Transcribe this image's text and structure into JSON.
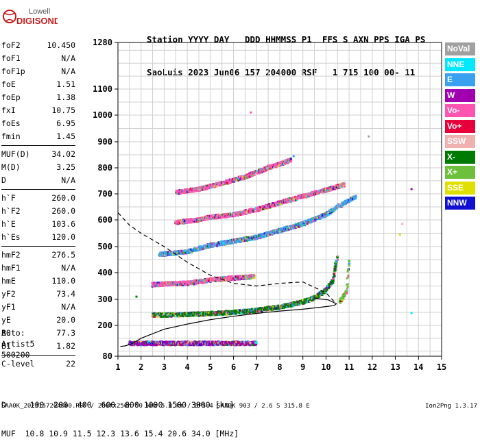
{
  "logo": {
    "line1": "Lowell",
    "line2": "DIGISONDE"
  },
  "header": {
    "line1": "Station YYYY DAY   DDD HHMMSS P1  FFS S AXN PPS IGA PS",
    "line2": "SaoLuis 2023 Jun06 157 204000 RSF   1 715 100 00- 11"
  },
  "params": {
    "group1": [
      {
        "k": "foF2",
        "v": "10.450"
      },
      {
        "k": "foF1",
        "v": "N/A"
      },
      {
        "k": "foF1p",
        "v": "N/A"
      },
      {
        "k": "foE",
        "v": "1.51"
      },
      {
        "k": "foEp",
        "v": "1.38"
      },
      {
        "k": "fxI",
        "v": "10.75"
      },
      {
        "k": "foEs",
        "v": "6.95"
      },
      {
        "k": "fmin",
        "v": "1.45"
      }
    ],
    "group2": [
      {
        "k": "MUF(D)",
        "v": "34.02"
      },
      {
        "k": "M(D)",
        "v": "3.25"
      },
      {
        "k": "D",
        "v": "N/A"
      }
    ],
    "group3": [
      {
        "k": "h`F",
        "v": "260.0"
      },
      {
        "k": "h`F2",
        "v": "260.0"
      },
      {
        "k": "h`E",
        "v": "103.6"
      },
      {
        "k": "h`Es",
        "v": "120.0"
      }
    ],
    "group4": [
      {
        "k": "hmF2",
        "v": "276.5"
      },
      {
        "k": "hmF1",
        "v": "N/A"
      },
      {
        "k": "hmE",
        "v": "110.0"
      },
      {
        "k": "yF2",
        "v": "73.4"
      },
      {
        "k": "yF1",
        "v": "N/A"
      },
      {
        "k": "yE",
        "v": "20.0"
      },
      {
        "k": "B0",
        "v": "77.3"
      },
      {
        "k": "B1",
        "v": "1.82"
      }
    ],
    "group5": [
      {
        "k": "C-level",
        "v": "22"
      }
    ]
  },
  "auto": {
    "line1": "Auto:",
    "line2": "Artist5",
    "line3": "500200"
  },
  "legend": [
    {
      "label": "NoVal",
      "color": "#a0a0a0"
    },
    {
      "label": "NNE",
      "color": "#00e8ff"
    },
    {
      "label": "E",
      "color": "#3aa0f0"
    },
    {
      "label": "W",
      "color": "#a000b0"
    },
    {
      "label": "Vo-",
      "color": "#ff55b0"
    },
    {
      "label": "Vo+",
      "color": "#e8003a"
    },
    {
      "label": "SSW",
      "color": "#f0b0b0"
    },
    {
      "label": "X-",
      "color": "#007a00"
    },
    {
      "label": "X+",
      "color": "#6cc03c"
    },
    {
      "label": "SSE",
      "color": "#e0e000"
    },
    {
      "label": "NNW",
      "color": "#1010d0"
    }
  ],
  "bottom": {
    "line1": "D     100  200  400  600  800 1000 1500 3000 [km]",
    "line2": "MUF  10.8 10.9 11.5 12.3 13.6 15.4 20.6 34.0 [MHz]"
  },
  "footer": "SAA0K_2023157204000.RSF / 280fx256h 50 kHz 5.0 km / DPS-4 SAA0K 903 / 2.6 S 315.8 E",
  "version": "Ion2Png 1.3.17",
  "chart_data": {
    "type": "scatter",
    "x_ticks": [
      1,
      2,
      3,
      4,
      5,
      6,
      7,
      8,
      9,
      10,
      11,
      12,
      13,
      14,
      15
    ],
    "y_ticks": [
      80,
      200,
      300,
      400,
      500,
      600,
      700,
      800,
      900,
      1000,
      1100,
      1280
    ],
    "xlim": [
      1,
      15
    ],
    "ylim": [
      80,
      1280
    ],
    "y_scale": "piecewise-linear",
    "grid": true,
    "traces": [
      {
        "name": "Es-trace",
        "color": "#a000b0",
        "x": [
          1.5,
          7.0
        ],
        "y": [
          130,
          130
        ]
      },
      {
        "name": "F-trace",
        "color": "#007a00",
        "points": [
          [
            2.5,
            240
          ],
          [
            3,
            240
          ],
          [
            4,
            242
          ],
          [
            5,
            245
          ],
          [
            6,
            250
          ],
          [
            7,
            258
          ],
          [
            8,
            270
          ],
          [
            8.5,
            280
          ],
          [
            9,
            290
          ],
          [
            9.5,
            305
          ],
          [
            10,
            335
          ],
          [
            10.3,
            370
          ],
          [
            10.4,
            420
          ],
          [
            10.5,
            460
          ]
        ]
      },
      {
        "name": "F-trace-X",
        "color": "#6cc03c",
        "points": [
          [
            10.6,
            290
          ],
          [
            10.9,
            330
          ],
          [
            10.95,
            400
          ],
          [
            11.0,
            450
          ]
        ]
      },
      {
        "name": "Echo-2E",
        "color": "#ff55b0",
        "points": [
          [
            2.5,
            355
          ],
          [
            3,
            358
          ],
          [
            4,
            360
          ],
          [
            5,
            372
          ],
          [
            6,
            380
          ],
          [
            6.9,
            385
          ]
        ]
      },
      {
        "name": "Echo-2F",
        "color": "#3aa0f0",
        "points": [
          [
            2.8,
            470
          ],
          [
            4,
            480
          ],
          [
            5,
            505
          ],
          [
            6,
            520
          ],
          [
            7,
            535
          ],
          [
            8,
            560
          ],
          [
            9,
            585
          ],
          [
            10,
            620
          ],
          [
            10.5,
            650
          ],
          [
            11.3,
            690
          ]
        ]
      },
      {
        "name": "Echo-3F",
        "color": "#ff55b0",
        "points": [
          [
            3.5,
            590
          ],
          [
            4.5,
            600
          ],
          [
            5,
            610
          ],
          [
            6,
            620
          ],
          [
            7,
            640
          ],
          [
            8,
            665
          ],
          [
            9,
            690
          ],
          [
            10,
            715
          ],
          [
            10.8,
            735
          ]
        ]
      },
      {
        "name": "Echo-4F",
        "color": "#ff55b0",
        "points": [
          [
            3.5,
            705
          ],
          [
            4.5,
            718
          ],
          [
            5.5,
            740
          ],
          [
            6.5,
            765
          ],
          [
            7.5,
            800
          ],
          [
            8.5,
            830
          ]
        ]
      }
    ],
    "profile_solid": [
      [
        1.1,
        118
      ],
      [
        1.3,
        120
      ],
      [
        1.6,
        128
      ],
      [
        2,
        150
      ],
      [
        3,
        185
      ],
      [
        4,
        205
      ],
      [
        5,
        222
      ],
      [
        6,
        235
      ],
      [
        7,
        246
      ],
      [
        8,
        255
      ],
      [
        9,
        262
      ],
      [
        9.8,
        270
      ],
      [
        10.35,
        276
      ],
      [
        10.45,
        283
      ],
      [
        10.1,
        298
      ],
      [
        9.5,
        304
      ]
    ],
    "profile_dashed": [
      [
        1.0,
        628
      ],
      [
        1.5,
        580
      ],
      [
        2,
        550
      ],
      [
        3,
        500
      ],
      [
        4,
        440
      ],
      [
        5,
        390
      ],
      [
        6,
        360
      ],
      [
        7,
        350
      ],
      [
        8,
        360
      ],
      [
        9,
        365
      ],
      [
        10,
        325
      ],
      [
        10.45,
        282
      ]
    ],
    "stray_points": [
      [
        11.85,
        920
      ],
      [
        13.7,
        718
      ],
      [
        13.3,
        585
      ],
      [
        13.2,
        545
      ],
      [
        13.7,
        248
      ],
      [
        6.75,
        1010
      ],
      [
        1.8,
        310
      ],
      [
        2.5,
        130
      ],
      [
        8.6,
        845
      ]
    ]
  }
}
